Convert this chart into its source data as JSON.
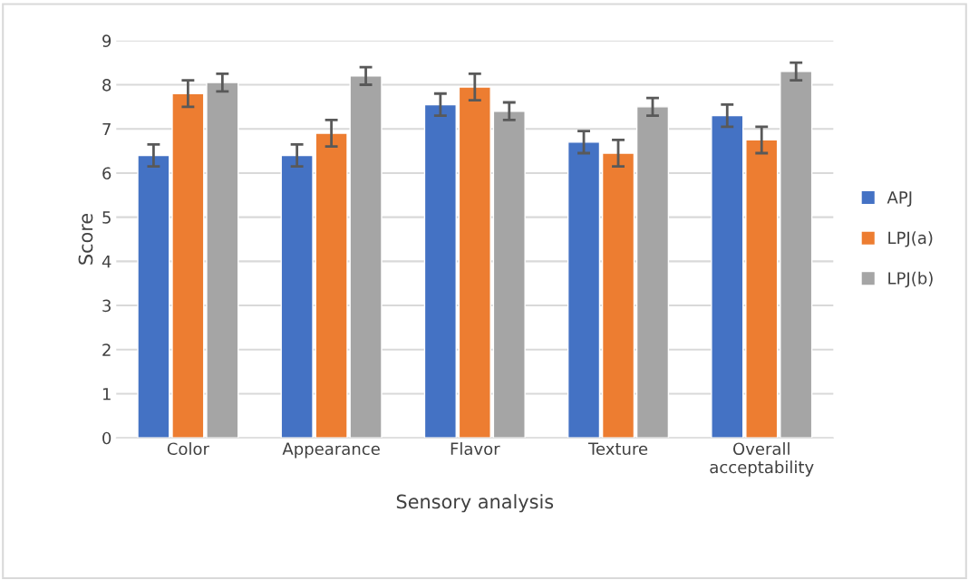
{
  "chart_data": {
    "type": "bar",
    "xlabel": "Sensory analysis",
    "ylabel": "Score",
    "categories": [
      "Color",
      "Appearance",
      "Flavor",
      "Texture",
      "Overall\nacceptability"
    ],
    "series": [
      {
        "name": "APJ",
        "color": "#4472c4",
        "values": [
          6.4,
          6.4,
          7.55,
          6.7,
          7.3
        ],
        "errors": [
          0.25,
          0.25,
          0.25,
          0.25,
          0.25
        ]
      },
      {
        "name": "LPJ(a)",
        "color": "#ed7d31",
        "values": [
          7.8,
          6.9,
          7.95,
          6.45,
          6.75
        ],
        "errors": [
          0.3,
          0.3,
          0.3,
          0.3,
          0.3
        ]
      },
      {
        "name": "LPJ(b)",
        "color": "#a5a5a5",
        "values": [
          8.05,
          8.2,
          7.4,
          7.5,
          8.3
        ],
        "errors": [
          0.2,
          0.2,
          0.2,
          0.2,
          0.2
        ]
      }
    ],
    "ylim": [
      0,
      9
    ],
    "yticks": [
      0,
      1,
      2,
      3,
      4,
      5,
      6,
      7,
      8,
      9
    ],
    "grid": "y",
    "legend": "right"
  }
}
